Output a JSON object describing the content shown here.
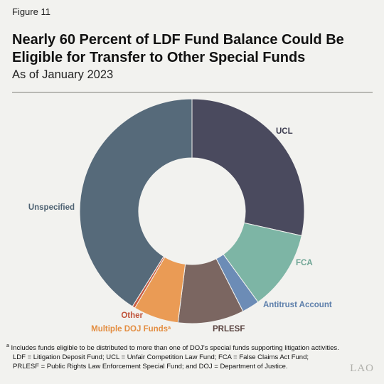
{
  "figure_label": "Figure 11",
  "chart_data": {
    "type": "pie",
    "style": "donut",
    "title": "Nearly 60 Percent of LDF Fund Balance Could Be Eligible for Transfer to Other Special Funds",
    "subtitle": "As of January 2023",
    "slices": [
      {
        "label": "UCL",
        "value": 28.5,
        "color": "#4a4a5e"
      },
      {
        "label": "FCA",
        "value": 11.5,
        "color": "#7db5a5"
      },
      {
        "label": "Antitrust Account",
        "value": 2.5,
        "color": "#6c8cb6"
      },
      {
        "label": "PRLESF",
        "value": 9.5,
        "color": "#7b6661"
      },
      {
        "label": "Multiple DOJ Funds",
        "label_suffix": "a",
        "value": 6.5,
        "color": "#ea9b55"
      },
      {
        "label": "Other",
        "value": 0.4,
        "color": "#c95a3f"
      },
      {
        "label": "Unspecified",
        "value": 41.1,
        "color": "#566a7a"
      }
    ]
  },
  "notes": {
    "footnote_marker": "a",
    "footnote": "Includes funds eligible to be distributed to more than one of DOJ's special funds supporting litigation activities.",
    "abbrev_line1": "LDF = Litigation Deposit Fund; UCL = Unfair Competition Law Fund; FCA = False Claims Act Fund;",
    "abbrev_line2": "PRLESF = Public Rights Law Enforcement Special Fund; and DOJ = Department of Justice."
  },
  "logo": "LAO"
}
